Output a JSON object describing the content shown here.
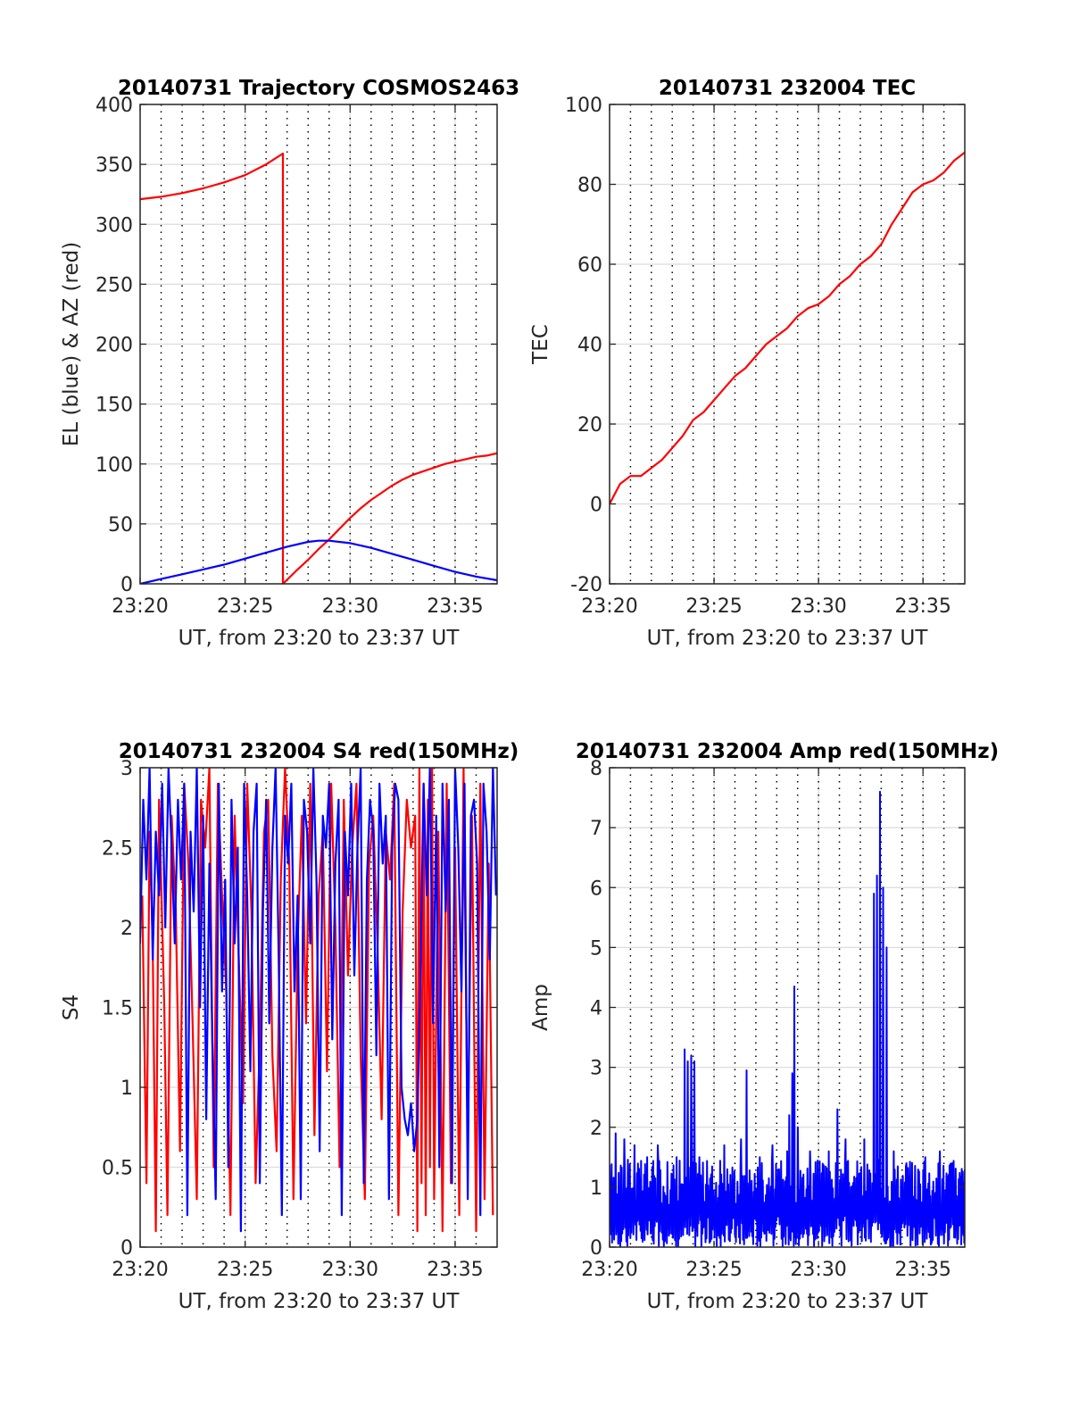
{
  "figure": {
    "background": "#ffffff"
  },
  "chart_data": [
    {
      "id": "trajectory",
      "type": "line",
      "title": "20140731 Trajectory COSMOS2463",
      "xlabel": "UT, from 23:20 to 23:37 UT",
      "ylabel": "EL (blue) & AZ (red)",
      "x_unit": "minutes after 23:20 UT",
      "xlim": [
        0,
        17
      ],
      "ylim": [
        0,
        400
      ],
      "xticks": [
        0,
        5,
        10,
        15
      ],
      "xtick_labels": [
        "23:20",
        "23:25",
        "23:30",
        "23:35"
      ],
      "yticks": [
        0,
        50,
        100,
        150,
        200,
        250,
        300,
        350,
        400
      ],
      "ytick_labels": [
        "0",
        "50",
        "100",
        "150",
        "200",
        "250",
        "300",
        "350",
        "400"
      ],
      "grid": true,
      "series": [
        {
          "color": "#ff0000",
          "x": [
            0,
            1,
            2,
            3,
            4,
            5,
            6,
            6.8,
            6.8,
            7.5,
            8,
            8.5,
            9,
            9.5,
            10,
            10.5,
            11,
            11.5,
            12,
            12.5,
            13,
            13.5,
            14,
            14.5,
            15,
            15.5,
            16,
            16.5,
            17
          ],
          "y": [
            321,
            323,
            326,
            330,
            335,
            341,
            350,
            359,
            0,
            12,
            20,
            29,
            37,
            46,
            55,
            63,
            70,
            76,
            82,
            87,
            91,
            94,
            97,
            100,
            102,
            104,
            106,
            107,
            109
          ]
        },
        {
          "color": "#0000ff",
          "x": [
            0,
            1,
            2,
            3,
            4,
            5,
            6,
            7,
            8,
            8.5,
            9,
            10,
            11,
            12,
            13,
            14,
            15,
            16,
            17
          ],
          "y": [
            0,
            4,
            8,
            12,
            16,
            21,
            26,
            31,
            35,
            36,
            36,
            34,
            30,
            25,
            20,
            15,
            10,
            6,
            3
          ]
        }
      ]
    },
    {
      "id": "tec",
      "type": "line",
      "title": "20140731 232004 TEC",
      "xlabel": "UT, from 23:20 to 23:37 UT",
      "ylabel": "TEC",
      "x_unit": "minutes after 23:20 UT",
      "xlim": [
        0,
        17
      ],
      "ylim": [
        -20,
        100
      ],
      "xticks": [
        0,
        5,
        10,
        15
      ],
      "xtick_labels": [
        "23:20",
        "23:25",
        "23:30",
        "23:35"
      ],
      "yticks": [
        -20,
        0,
        20,
        40,
        60,
        80,
        100
      ],
      "ytick_labels": [
        "-20",
        "0",
        "20",
        "40",
        "60",
        "80",
        "100"
      ],
      "grid": true,
      "series": [
        {
          "color": "#ff0000",
          "x": [
            0,
            0.5,
            1,
            1.5,
            2,
            2.5,
            3,
            3.5,
            4,
            4.5,
            5,
            5.5,
            6,
            6.5,
            7,
            7.5,
            8,
            8.5,
            9,
            9.5,
            10,
            10.5,
            11,
            11.5,
            12,
            12.5,
            13,
            13.5,
            14,
            14.5,
            15,
            15.5,
            16,
            16.5,
            17
          ],
          "y": [
            0,
            5,
            7,
            7,
            9,
            11,
            14,
            17,
            21,
            23,
            26,
            29,
            32,
            34,
            37,
            40,
            42,
            44,
            47,
            49,
            50,
            52,
            55,
            57,
            60,
            62,
            65,
            70,
            74,
            78,
            80,
            81,
            83,
            86,
            88
          ]
        }
      ]
    },
    {
      "id": "s4",
      "type": "line",
      "title": "20140731 232004 S4 red(150MHz)",
      "xlabel": "UT, from 23:20 to 23:37 UT",
      "ylabel": "S4",
      "x_unit": "minutes after 23:20 UT",
      "xlim": [
        0,
        17
      ],
      "ylim": [
        0,
        3
      ],
      "xticks": [
        0,
        5,
        10,
        15
      ],
      "xtick_labels": [
        "23:20",
        "23:25",
        "23:30",
        "23:35"
      ],
      "yticks": [
        0,
        0.5,
        1,
        1.5,
        2,
        2.5,
        3
      ],
      "ytick_labels": [
        "0",
        "0.5",
        "1",
        "1.5",
        "2",
        "2.5",
        "3"
      ],
      "grid": true,
      "series": [
        {
          "color": "#ff0000",
          "x": [
            0.1,
            0.3,
            0.45,
            0.6,
            0.75,
            0.9,
            1.0,
            1.15,
            1.3,
            1.5,
            1.7,
            1.9,
            2.1,
            2.3,
            2.5,
            2.7,
            2.9,
            3.1,
            3.3,
            3.5,
            3.7,
            3.9,
            4.1,
            4.3,
            4.5,
            4.7,
            4.9,
            5.1,
            5.3,
            5.5,
            5.7,
            5.9,
            6.1,
            6.3,
            6.5,
            6.7,
            6.9,
            7.1,
            7.3,
            7.5,
            7.7,
            7.9,
            8.1,
            8.3,
            8.5,
            8.7,
            8.9,
            9.1,
            9.3,
            9.5,
            9.7,
            9.9,
            10.1,
            10.3,
            10.5,
            10.7,
            10.9,
            11.1,
            11.3,
            11.5,
            11.7,
            11.9,
            12.1,
            12.3,
            12.5,
            12.7,
            12.9,
            13.1,
            13.2,
            13.3,
            13.4,
            13.5,
            13.6,
            13.7,
            13.8,
            13.9,
            14.0,
            14.2,
            14.4,
            14.6,
            14.8,
            15.0,
            15.2,
            15.4,
            15.6,
            15.8,
            16.0,
            16.2,
            16.4,
            16.6,
            16.8
          ],
          "y": [
            2.2,
            0.4,
            2.6,
            1.9,
            0.1,
            2.8,
            2.3,
            1.5,
            0.2,
            2.7,
            2.1,
            0.6,
            2.9,
            2.4,
            1.4,
            0.3,
            2.8,
            2.5,
            3.0,
            0.5,
            2.9,
            2.2,
            1.6,
            0.2,
            2.7,
            1.8,
            0.9,
            2.9,
            2.1,
            0.4,
            1.3,
            2.6,
            2.8,
            1.2,
            0.6,
            2.3,
            3.0,
            2.4,
            0.3,
            1.9,
            2.7,
            1.4,
            2.9,
            0.7,
            2.2,
            2.6,
            1.1,
            2.9,
            2.0,
            0.5,
            2.8,
            1.7,
            2.5,
            2.9,
            1.2,
            0.3,
            2.4,
            2.7,
            1.9,
            0.8,
            2.6,
            2.3,
            2.9,
            0.2,
            2.1,
            2.8,
            2.5,
            2.7,
            0.1,
            3.0,
            0.4,
            2.9,
            0.2,
            2.8,
            0.5,
            3.0,
            0.3,
            2.6,
            0.1,
            2.9,
            0.4,
            2.5,
            0.2,
            3.0,
            0.6,
            2.7,
            0.1,
            2.9,
            0.3,
            2.4,
            0.2
          ]
        },
        {
          "color": "#0000ff",
          "x": [
            0,
            0.15,
            0.3,
            0.45,
            0.6,
            0.75,
            0.9,
            1.05,
            1.2,
            1.35,
            1.5,
            1.65,
            1.8,
            1.95,
            2.1,
            2.25,
            2.4,
            2.55,
            2.7,
            2.85,
            3.0,
            3.15,
            3.3,
            3.45,
            3.6,
            3.75,
            3.9,
            4.05,
            4.2,
            4.35,
            4.5,
            4.65,
            4.8,
            4.95,
            5.1,
            5.25,
            5.4,
            5.55,
            5.7,
            5.85,
            6.0,
            6.15,
            6.3,
            6.45,
            6.6,
            6.75,
            6.9,
            7.05,
            7.2,
            7.35,
            7.5,
            7.65,
            7.8,
            7.95,
            8.1,
            8.25,
            8.4,
            8.55,
            8.7,
            8.85,
            9.0,
            9.15,
            9.3,
            9.45,
            9.6,
            9.75,
            9.9,
            10.05,
            10.2,
            10.35,
            10.5,
            10.65,
            10.8,
            10.95,
            11.1,
            11.25,
            11.4,
            11.55,
            11.7,
            11.85,
            12.0,
            12.15,
            12.3,
            12.45,
            12.6,
            12.75,
            12.9,
            13.05,
            13.2,
            13.35,
            13.5,
            13.65,
            13.8,
            13.95,
            14.1,
            14.25,
            14.4,
            14.55,
            14.7,
            14.85,
            15.0,
            15.15,
            15.3,
            15.45,
            15.6,
            15.75,
            15.9,
            16.05,
            16.2,
            16.35,
            16.5,
            16.65,
            16.8,
            16.95
          ],
          "y": [
            1.9,
            2.8,
            2.3,
            3.0,
            1.8,
            2.6,
            2.2,
            2.9,
            2.0,
            3.0,
            2.5,
            1.9,
            2.8,
            2.3,
            2.9,
            0.2,
            2.6,
            2.1,
            3.0,
            1.5,
            2.7,
            0.8,
            2.4,
            1.2,
            0.3,
            2.9,
            1.6,
            2.3,
            0.5,
            2.8,
            1.9,
            2.5,
            0.1,
            2.9,
            2.2,
            1.1,
            2.6,
            2.9,
            0.4,
            2.1,
            2.8,
            1.4,
            2.5,
            3.0,
            1.8,
            0.2,
            2.7,
            2.4,
            2.9,
            1.6,
            2.2,
            0.3,
            2.8,
            2.6,
            1.9,
            3.0,
            2.3,
            0.6,
            2.7,
            2.5,
            2.9,
            1.3,
            2.4,
            2.8,
            0.2,
            2.6,
            2.2,
            2.9,
            1.7,
            2.5,
            3.0,
            0.4,
            2.3,
            2.8,
            2.6,
            1.2,
            2.9,
            2.4,
            2.7,
            0.3,
            2.5,
            2.9,
            2.8,
            1.0,
            0.8,
            0.7,
            0.9,
            0.6,
            0.8,
            1.7,
            2.9,
            2.2,
            3.0,
            1.4,
            2.7,
            0.5,
            2.9,
            2.1,
            2.8,
            0.4,
            3.0,
            2.5,
            1.6,
            2.9,
            0.3,
            2.7,
            2.8,
            2.4,
            0.2,
            2.9,
            2.6,
            1.8,
            3.0,
            2.2
          ]
        }
      ]
    },
    {
      "id": "amp",
      "type": "line",
      "title": "20140731 232004 Amp red(150MHz)",
      "xlabel": "UT, from 23:20 to 23:37 UT",
      "ylabel": "Amp",
      "x_unit": "minutes after 23:20 UT",
      "xlim": [
        0,
        17
      ],
      "ylim": [
        0,
        8
      ],
      "xticks": [
        0,
        5,
        10,
        15
      ],
      "xtick_labels": [
        "23:20",
        "23:25",
        "23:30",
        "23:35"
      ],
      "yticks": [
        0,
        1,
        2,
        3,
        4,
        5,
        6,
        7,
        8
      ],
      "ytick_labels": [
        "0",
        "1",
        "2",
        "3",
        "4",
        "5",
        "6",
        "7",
        "8"
      ],
      "grid": true,
      "series": [
        {
          "color": "#0000ff",
          "baseline": 0.9,
          "noise": 0.4,
          "spikes": [
            {
              "x": 0.3,
              "y": 1.9
            },
            {
              "x": 0.7,
              "y": 1.8
            },
            {
              "x": 1.2,
              "y": 1.7
            },
            {
              "x": 1.8,
              "y": 1.5
            },
            {
              "x": 2.3,
              "y": 1.7
            },
            {
              "x": 3.2,
              "y": 1.5
            },
            {
              "x": 3.6,
              "y": 3.3
            },
            {
              "x": 3.75,
              "y": 3.1
            },
            {
              "x": 3.9,
              "y": 3.2
            },
            {
              "x": 4.05,
              "y": 3.1
            },
            {
              "x": 4.3,
              "y": 1.5
            },
            {
              "x": 5.5,
              "y": 1.7
            },
            {
              "x": 6.3,
              "y": 1.8
            },
            {
              "x": 6.55,
              "y": 2.95
            },
            {
              "x": 7.2,
              "y": 1.5
            },
            {
              "x": 7.8,
              "y": 1.7
            },
            {
              "x": 8.5,
              "y": 1.6
            },
            {
              "x": 8.6,
              "y": 2.2
            },
            {
              "x": 8.75,
              "y": 2.9
            },
            {
              "x": 8.85,
              "y": 4.35
            },
            {
              "x": 9.0,
              "y": 2.0
            },
            {
              "x": 9.6,
              "y": 1.6
            },
            {
              "x": 10.5,
              "y": 1.6
            },
            {
              "x": 10.9,
              "y": 2.3
            },
            {
              "x": 11.3,
              "y": 1.8
            },
            {
              "x": 12.2,
              "y": 1.8
            },
            {
              "x": 12.65,
              "y": 5.9
            },
            {
              "x": 12.8,
              "y": 6.2
            },
            {
              "x": 12.95,
              "y": 7.6
            },
            {
              "x": 13.1,
              "y": 6.0
            },
            {
              "x": 13.25,
              "y": 5.0
            },
            {
              "x": 13.6,
              "y": 1.6
            },
            {
              "x": 14.2,
              "y": 1.4
            },
            {
              "x": 15.1,
              "y": 1.5
            },
            {
              "x": 15.8,
              "y": 1.6
            },
            {
              "x": 16.4,
              "y": 1.4
            }
          ]
        }
      ]
    }
  ]
}
